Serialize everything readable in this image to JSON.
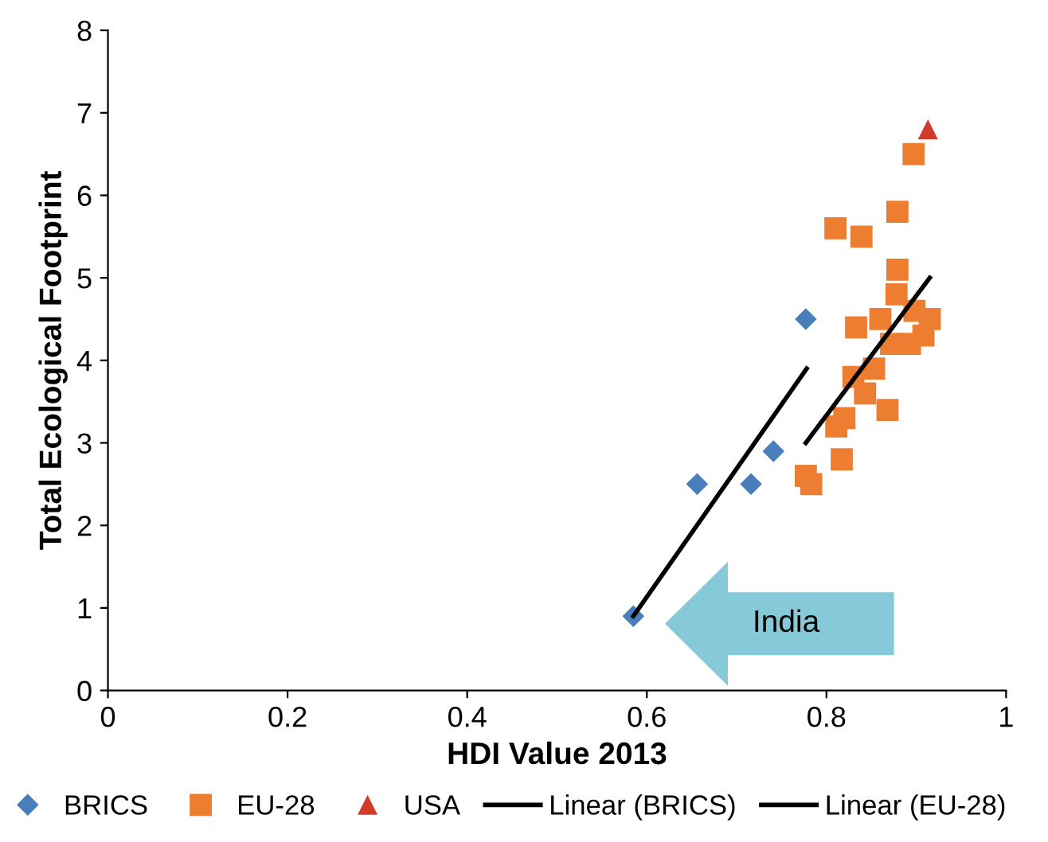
{
  "chart_data": {
    "type": "scatter",
    "xlabel": "HDI Value 2013",
    "ylabel": "Total Ecological Footprint",
    "xlim": [
      0,
      1
    ],
    "xticks": [
      0,
      0.2,
      0.4,
      0.6,
      0.8,
      1
    ],
    "ylim": [
      0,
      8
    ],
    "yticks": [
      0,
      1,
      2,
      3,
      4,
      5,
      6,
      7,
      8
    ],
    "grid": false,
    "legend": "bottom",
    "series": [
      {
        "name": "BRICS",
        "marker": "diamond",
        "color": "#4a7ebb",
        "x": [
          0.585,
          0.656,
          0.716,
          0.741,
          0.777
        ],
        "values": [
          0.9,
          2.5,
          2.5,
          2.9,
          4.5
        ]
      },
      {
        "name": "EU-28",
        "marker": "square",
        "color": "#ed7d31",
        "x": [
          0.897,
          0.879,
          0.81,
          0.839,
          0.879,
          0.878,
          0.898,
          0.915,
          0.86,
          0.833,
          0.908,
          0.872,
          0.893,
          0.853,
          0.83,
          0.843,
          0.868,
          0.82,
          0.811,
          0.817,
          0.777,
          0.783
        ],
        "values": [
          6.5,
          5.8,
          5.6,
          5.5,
          5.1,
          4.8,
          4.6,
          4.5,
          4.5,
          4.4,
          4.3,
          4.2,
          4.2,
          3.9,
          3.8,
          3.6,
          3.4,
          3.3,
          3.2,
          2.8,
          2.6,
          2.5
        ]
      },
      {
        "name": "USA",
        "marker": "triangle",
        "color": "#d13b2a",
        "x": [
          0.913
        ],
        "values": [
          6.8
        ]
      },
      {
        "name": "Linear (BRICS)",
        "type": "line",
        "marker": "none",
        "line_style": "solid",
        "color": "#000000",
        "x": [
          0.585,
          0.778
        ],
        "values": [
          0.9,
          3.9
        ]
      },
      {
        "name": "Linear (EU-28)",
        "type": "line",
        "marker": "none",
        "line_style": "solid",
        "color": "#000000",
        "x": [
          0.777,
          0.915
        ],
        "values": [
          3.0,
          5.0
        ]
      }
    ],
    "annotations": [
      "India"
    ]
  }
}
